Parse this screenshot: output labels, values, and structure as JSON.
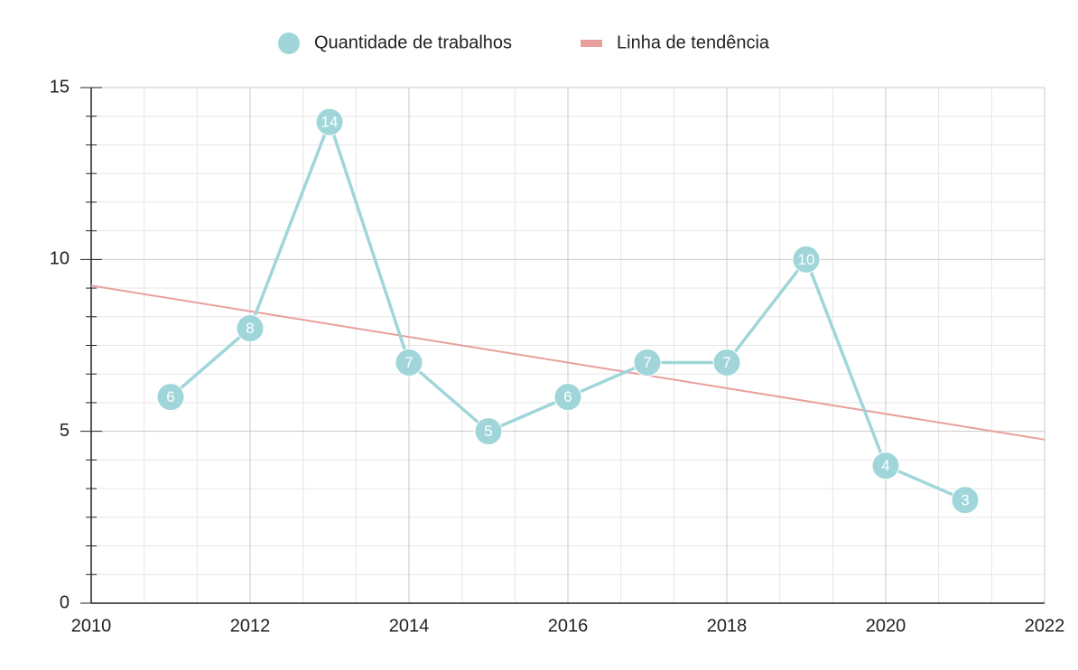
{
  "chart_data": {
    "type": "line",
    "xlim": [
      2010,
      2022
    ],
    "xticks": [
      2010,
      2012,
      2014,
      2016,
      2018,
      2020,
      2022
    ],
    "ylim": [
      0,
      15
    ],
    "yticks": [
      0,
      5,
      10,
      15
    ],
    "grid": true,
    "series": [
      {
        "name": "Quantidade de trabalhos",
        "color": "#a0d6da",
        "x": [
          2011,
          2012,
          2013,
          2014,
          2015,
          2016,
          2017,
          2018,
          2019,
          2020,
          2021
        ],
        "values": [
          6,
          8,
          14,
          7,
          5,
          6,
          7,
          7,
          10,
          4,
          3
        ]
      },
      {
        "name": "Linha de tendência",
        "color": "#e8a09b",
        "x": [
          2010,
          2022
        ],
        "values": [
          9.24,
          4.76
        ]
      }
    ]
  }
}
